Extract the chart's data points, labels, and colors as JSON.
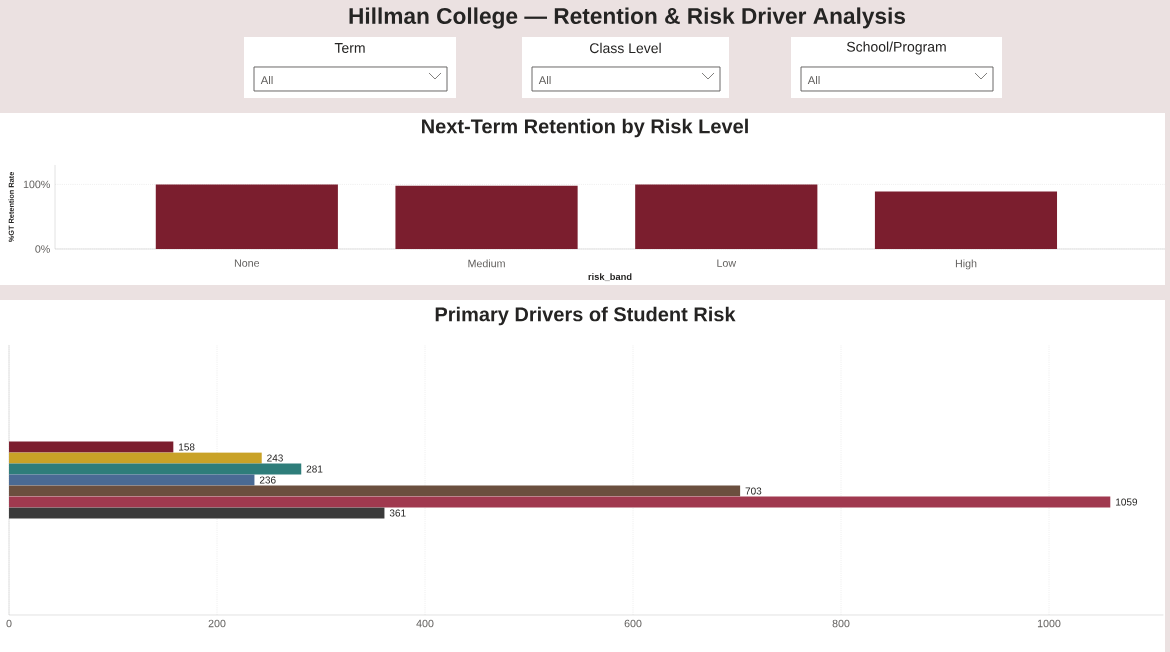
{
  "chart_data": [
    {
      "type": "other",
      "title": "Hillman College — Retention & Risk Driver Analysis",
      "annotations": [
        "Term",
        "All",
        "Class Level",
        "All",
        "School/Program",
        "All"
      ]
    },
    {
      "type": "bar",
      "title": "Next-Term Retention by Risk Level",
      "xlabel": "risk_band",
      "ylabel": "%GT Retention Rate",
      "categories": [
        "None",
        "Medium",
        "Low",
        "High"
      ],
      "values": [
        100,
        98,
        100,
        89
      ],
      "color": "#7b1e2e",
      "ylim": [
        0,
        130
      ],
      "yticks": [
        {
          "value": 0,
          "label": "0%"
        },
        {
          "value": 100,
          "label": "100%"
        }
      ],
      "grid": "y"
    },
    {
      "type": "bar",
      "title": "Primary Drivers of Student Risk",
      "orientation": "horizontal",
      "categories": [
        null
      ],
      "series": [
        {
          "color": "#7b1e2e",
          "values": [
            158
          ]
        },
        {
          "color": "#c9a227",
          "values": [
            243
          ]
        },
        {
          "color": "#2e7d7a",
          "values": [
            281
          ]
        },
        {
          "color": "#4a6a94",
          "values": [
            236
          ]
        },
        {
          "color": "#6b4f3f",
          "values": [
            703
          ]
        },
        {
          "color": "#a0394f",
          "values": [
            1059
          ]
        },
        {
          "color": "#3a3a3a",
          "values": [
            361
          ]
        }
      ],
      "xlim": [
        0,
        1110
      ],
      "xticks": [
        0,
        200,
        400,
        600,
        800,
        1000
      ],
      "grid": "x",
      "data_labels": true,
      "tick_labels": "x"
    }
  ]
}
